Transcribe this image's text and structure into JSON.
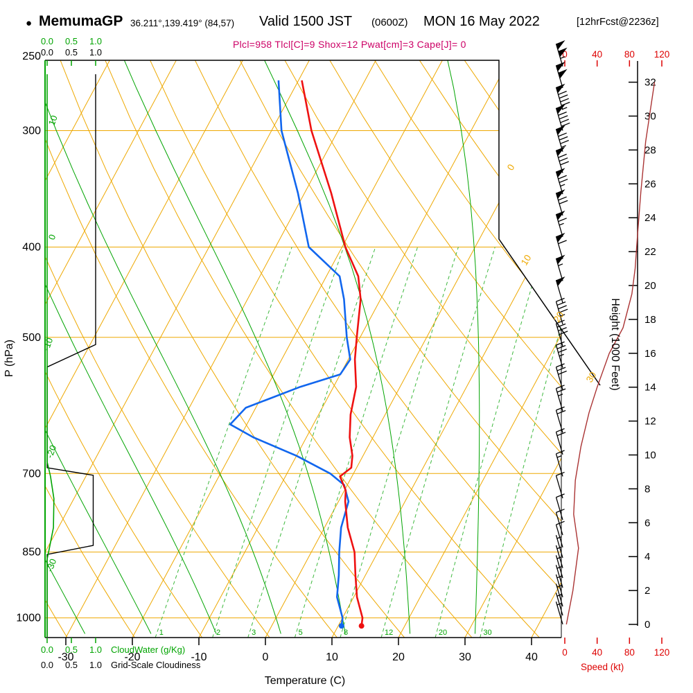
{
  "header": {
    "bullet": "●",
    "station": "MemumaGP",
    "coords": "36.211°,139.419° (84,57)",
    "valid": "Valid 1500 JST",
    "valid_z": "(0600Z)",
    "valid_date": "MON 16 May 2022",
    "fcst_tag": "[12hrFcst@2236z]",
    "params_line": "Plcl=958 Tlcl[C]=9 Shox=12 Pwat[cm]=3 Cape[J]= 0"
  },
  "axes": {
    "pressure_label": "P (hPa)",
    "pressure_ticks": [
      250,
      300,
      400,
      500,
      700,
      850,
      1000
    ],
    "temp_label": "Temperature (C)",
    "temp_ticks": [
      -30,
      -20,
      -10,
      0,
      10,
      20,
      30,
      40
    ],
    "height_label": "Height (1000 Feet)",
    "height_ticks": [
      0,
      2,
      4,
      6,
      8,
      10,
      12,
      14,
      16,
      18,
      20,
      22,
      24,
      26,
      28,
      30,
      32
    ],
    "speed_label": "Speed (kt)",
    "speed_ticks": [
      0,
      40,
      80,
      120
    ],
    "cloudwater_label": "CloudWater (g/Kg)",
    "cloudiness_label": "Grid-Scale Cloudiness",
    "mini_scale": [
      "0.0",
      "0.5",
      "1.0"
    ]
  },
  "colors": {
    "grid_orange": "#eea800",
    "green": "#00a400",
    "mixing_green": "#3db83d",
    "temperature_red": "#ee1111",
    "dewpoint_blue": "#1166ee",
    "speed_dark_red": "#aa3333",
    "magenta": "#cc0066",
    "axis_red": "#dd0000",
    "black": "#000000"
  },
  "chart_data": {
    "type": "line",
    "subtype": "skew-t log-p atmospheric sounding",
    "title": "MemumaGP 36.211°,139.419° (84,57) Valid 1500 JST (0600Z) MON 16 May 2022 [12hrFcst@2236z]",
    "xlabel": "Temperature (C)",
    "ylabel": "P (hPa)",
    "x_range_c": [
      -35,
      45
    ],
    "pressure_range_hpa": [
      250,
      1050
    ],
    "height_range_kft": [
      0,
      32
    ],
    "speed_range_kt": [
      0,
      120
    ],
    "indices": {
      "Plcl_hPa": 958,
      "Tlcl_C": 9,
      "Showalter": 12,
      "Pwat_cm": 3,
      "Cape_J": 0
    },
    "temperature_profile_p_c": [
      [
        1020,
        13.5
      ],
      [
        1000,
        13
      ],
      [
        950,
        10.5
      ],
      [
        900,
        8.5
      ],
      [
        850,
        6.5
      ],
      [
        800,
        3.5
      ],
      [
        750,
        1
      ],
      [
        730,
        0.2
      ],
      [
        705,
        -1.8
      ],
      [
        690,
        -0.8
      ],
      [
        670,
        -1.6
      ],
      [
        640,
        -3.5
      ],
      [
        605,
        -5.2
      ],
      [
        565,
        -6.6
      ],
      [
        528,
        -9
      ],
      [
        500,
        -10.5
      ],
      [
        455,
        -13
      ],
      [
        430,
        -15.2
      ],
      [
        400,
        -19.5
      ],
      [
        350,
        -26
      ],
      [
        300,
        -34
      ],
      [
        265,
        -39.5
      ]
    ],
    "dewpoint_profile_p_c": [
      [
        1020,
        10.5
      ],
      [
        1000,
        10
      ],
      [
        950,
        7.5
      ],
      [
        900,
        6
      ],
      [
        850,
        4.2
      ],
      [
        800,
        2.5
      ],
      [
        750,
        1.5
      ],
      [
        720,
        -0.5
      ],
      [
        700,
        -3.5
      ],
      [
        670,
        -10
      ],
      [
        640,
        -18
      ],
      [
        620,
        -22.5
      ],
      [
        595,
        -21.5
      ],
      [
        565,
        -15
      ],
      [
        548,
        -10
      ],
      [
        528,
        -9.7
      ],
      [
        500,
        -12
      ],
      [
        455,
        -15.5
      ],
      [
        430,
        -18
      ],
      [
        400,
        -25
      ],
      [
        350,
        -31
      ],
      [
        300,
        -38.5
      ],
      [
        265,
        -43
      ]
    ],
    "wind_profile_p_kt": [
      [
        256,
        105
      ],
      [
        270,
        100
      ],
      [
        285,
        95
      ],
      [
        300,
        90
      ],
      [
        316,
        85
      ],
      [
        333,
        80
      ],
      [
        351,
        75
      ],
      [
        370,
        70
      ],
      [
        390,
        65
      ],
      [
        412,
        60
      ],
      [
        435,
        55
      ],
      [
        459,
        50
      ],
      [
        484,
        45
      ],
      [
        511,
        40
      ],
      [
        539,
        35
      ],
      [
        569,
        30
      ],
      [
        600,
        25
      ],
      [
        633,
        20
      ],
      [
        668,
        18
      ],
      [
        705,
        15
      ],
      [
        744,
        12
      ],
      [
        785,
        10
      ],
      [
        815,
        8
      ],
      [
        840,
        8
      ],
      [
        862,
        7
      ],
      [
        884,
        6
      ],
      [
        906,
        5
      ],
      [
        928,
        5
      ],
      [
        950,
        4
      ],
      [
        972,
        3
      ],
      [
        994,
        3
      ],
      [
        1016,
        3
      ]
    ],
    "speed_vs_height_kft_kt": [
      [
        0,
        2
      ],
      [
        2,
        10
      ],
      [
        4.5,
        17
      ],
      [
        6.5,
        11
      ],
      [
        8.5,
        13
      ],
      [
        10.5,
        20
      ],
      [
        12.5,
        30
      ],
      [
        14,
        40
      ],
      [
        16,
        55
      ],
      [
        17.5,
        72
      ],
      [
        19.5,
        83
      ],
      [
        21,
        87
      ],
      [
        23,
        90
      ],
      [
        25.5,
        94
      ],
      [
        28.5,
        100
      ],
      [
        32,
        111
      ]
    ],
    "cloudiness_profile_p_frac": [
      [
        261,
        1
      ],
      [
        509,
        1
      ],
      [
        538,
        0
      ],
      [
        690,
        0
      ],
      [
        703,
        0.95
      ],
      [
        836,
        0.95
      ],
      [
        855,
        0
      ],
      [
        1048,
        0
      ]
    ],
    "cloudwater_profile_p_gkg": [
      [
        261,
        0
      ],
      [
        680,
        0
      ],
      [
        705,
        0.07
      ],
      [
        745,
        0.14
      ],
      [
        800,
        0.13
      ],
      [
        840,
        0.05
      ],
      [
        865,
        0
      ],
      [
        1048,
        0
      ]
    ],
    "mixing_ratio_lines_gkg": [
      1,
      2,
      3,
      5,
      8,
      12,
      20,
      30
    ],
    "isotherm_labels_c": [
      0,
      10,
      20,
      30
    ],
    "moist_adiabat_labels": [
      10,
      0,
      -10,
      -20,
      -30
    ],
    "dry_adiabats_theta_k": {
      "from": 240,
      "to": 450,
      "step": 10
    },
    "isotherms_c": {
      "from": -110,
      "to": 40,
      "step": 10
    },
    "moist_adiabats_thetaw_c": [
      -40,
      -30,
      -20,
      -10,
      0,
      10,
      20,
      30
    ]
  }
}
